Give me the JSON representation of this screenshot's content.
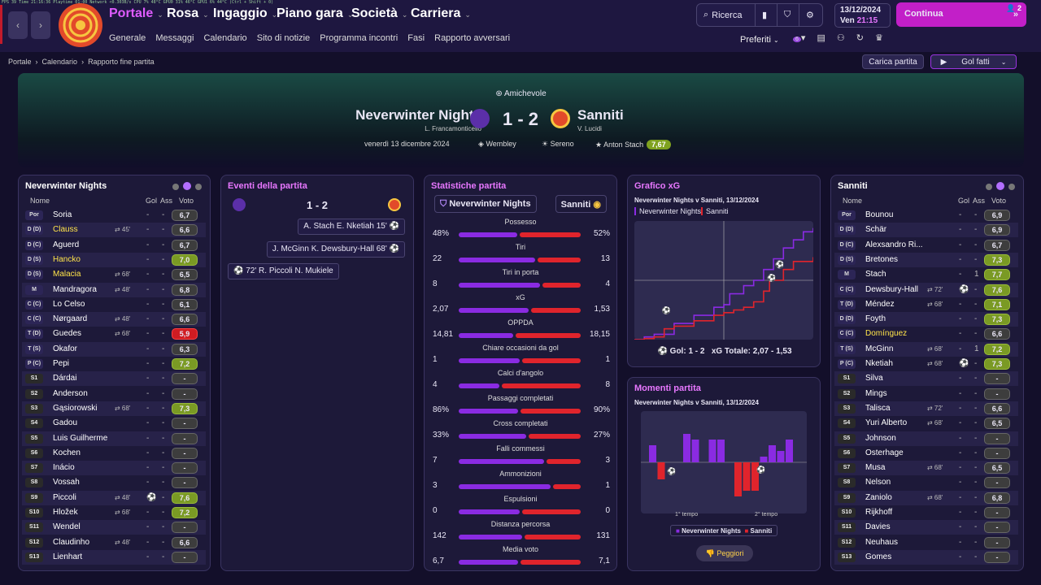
{
  "debug": {
    "text": "FPS 39      Time 21:16:36   Playtime 01:00    Network <0.303B/s    CPU 7%   48°C     GPU0 31%  46°C    GPU1 6%   44°C    (Ctrl + Shift + 0)"
  },
  "nav": {
    "menus": [
      "Portale",
      "Rosa",
      "Ingaggio",
      "Piano gara",
      "Società",
      "Carriera"
    ],
    "submenu": [
      "Generale",
      "Messaggi",
      "Calendario",
      "Sito di notizie",
      "Programma incontri",
      "Fasi",
      "Rapporto avversari"
    ],
    "search": "Ricerca",
    "date": "13/12/2024",
    "day": "Ven",
    "time": "21:15",
    "continua": "Continua",
    "badge": "2",
    "preferiti": "Preferiti",
    "pref_badge": "6"
  },
  "breadcrumb": [
    "Portale",
    "Calendario",
    "Rapporto fine partita"
  ],
  "actions": {
    "carica": "Carica partita",
    "golfatti": "Gol fatti"
  },
  "match": {
    "type": "Amichevole",
    "home": "Neverwinter Nights",
    "home_manager": "L. Francamonticello",
    "away": "Sanniti",
    "away_manager": "V. Lucidi",
    "score": "1 - 2",
    "date": "venerdì 13 dicembre 2024",
    "stadium": "Wembley",
    "weather": "Sereno",
    "motm": "Anton Stach",
    "motm_rating": "7,67"
  },
  "colors": {
    "home": "#8a2be2",
    "away": "#e0242c",
    "accent": "#e05cff"
  },
  "lineup_headers": {
    "name": "Nome",
    "gol": "Gol",
    "ass": "Ass",
    "voto": "Voto"
  },
  "home_lineup": {
    "title": "Neverwinter Nights",
    "players": [
      {
        "pos": "Por",
        "name": "Soria",
        "sub": "",
        "g": "-",
        "a": "-",
        "v": "6,7",
        "c": ""
      },
      {
        "pos": "D (D)",
        "name": "Clauss",
        "sub": "⇄ 45'",
        "g": "-",
        "a": "-",
        "v": "6,6",
        "c": "",
        "y": 1
      },
      {
        "pos": "D (C)",
        "name": "Aguerd",
        "sub": "",
        "g": "-",
        "a": "-",
        "v": "6,7",
        "c": ""
      },
      {
        "pos": "D (S)",
        "name": "Hancko",
        "sub": "",
        "g": "-",
        "a": "-",
        "v": "7,0",
        "c": "g",
        "y": 1
      },
      {
        "pos": "D (S)",
        "name": "Malacia",
        "sub": "⇄ 68'",
        "g": "-",
        "a": "-",
        "v": "6,5",
        "c": "",
        "y": 1
      },
      {
        "pos": "M",
        "name": "Mandragora",
        "sub": "⇄ 48'",
        "g": "-",
        "a": "-",
        "v": "6,8",
        "c": ""
      },
      {
        "pos": "C (C)",
        "name": "Lo Celso",
        "sub": "",
        "g": "-",
        "a": "-",
        "v": "6,1",
        "c": ""
      },
      {
        "pos": "C (C)",
        "name": "Nørgaard",
        "sub": "⇄ 48'",
        "g": "-",
        "a": "-",
        "v": "6,6",
        "c": ""
      },
      {
        "pos": "T (D)",
        "name": "Guedes",
        "sub": "⇄ 68'",
        "g": "-",
        "a": "-",
        "v": "5,9",
        "c": "r"
      },
      {
        "pos": "T (S)",
        "name": "Okafor",
        "sub": "",
        "g": "-",
        "a": "-",
        "v": "6,3",
        "c": ""
      },
      {
        "pos": "P (C)",
        "name": "Pepi",
        "sub": "",
        "g": "-",
        "a": "-",
        "v": "7,2",
        "c": "g"
      },
      {
        "pos": "S1",
        "name": "Dárdai",
        "sub": "",
        "g": "-",
        "a": "-",
        "v": "-",
        "c": "",
        "s": 1
      },
      {
        "pos": "S2",
        "name": "Anderson",
        "sub": "",
        "g": "-",
        "a": "-",
        "v": "-",
        "c": "",
        "s": 1
      },
      {
        "pos": "S3",
        "name": "Gąsiorowski",
        "sub": "⇄ 68'",
        "g": "-",
        "a": "-",
        "v": "7,3",
        "c": "g",
        "s": 1
      },
      {
        "pos": "S4",
        "name": "Gadou",
        "sub": "",
        "g": "-",
        "a": "-",
        "v": "-",
        "c": "",
        "s": 1
      },
      {
        "pos": "S5",
        "name": "Luis Guilherme",
        "sub": "",
        "g": "-",
        "a": "-",
        "v": "-",
        "c": "",
        "s": 1
      },
      {
        "pos": "S6",
        "name": "Kochen",
        "sub": "",
        "g": "-",
        "a": "-",
        "v": "-",
        "c": "",
        "s": 1
      },
      {
        "pos": "S7",
        "name": "Inácio",
        "sub": "",
        "g": "-",
        "a": "-",
        "v": "-",
        "c": "",
        "s": 1
      },
      {
        "pos": "S8",
        "name": "Vossah",
        "sub": "",
        "g": "-",
        "a": "-",
        "v": "-",
        "c": "",
        "s": 1
      },
      {
        "pos": "S9",
        "name": "Piccoli",
        "sub": "⇄ 48'",
        "g": "⚽",
        "a": "-",
        "v": "7,6",
        "c": "g",
        "s": 1
      },
      {
        "pos": "S10",
        "name": "Hložek",
        "sub": "⇄ 68'",
        "g": "-",
        "a": "-",
        "v": "7,2",
        "c": "g",
        "s": 1
      },
      {
        "pos": "S11",
        "name": "Wendel",
        "sub": "",
        "g": "-",
        "a": "-",
        "v": "-",
        "c": "",
        "s": 1
      },
      {
        "pos": "S12",
        "name": "Claudinho",
        "sub": "⇄ 48'",
        "g": "-",
        "a": "-",
        "v": "6,6",
        "c": "",
        "s": 1
      },
      {
        "pos": "S13",
        "name": "Lienhart",
        "sub": "",
        "g": "-",
        "a": "-",
        "v": "-",
        "c": "",
        "s": 1
      }
    ]
  },
  "away_lineup": {
    "title": "Sanniti",
    "players": [
      {
        "pos": "Por",
        "name": "Bounou",
        "sub": "",
        "g": "-",
        "a": "-",
        "v": "6,9",
        "c": ""
      },
      {
        "pos": "D (D)",
        "name": "Schär",
        "sub": "",
        "g": "-",
        "a": "-",
        "v": "6,9",
        "c": ""
      },
      {
        "pos": "D (C)",
        "name": "Alexsandro Ri...",
        "sub": "",
        "g": "-",
        "a": "-",
        "v": "6,7",
        "c": ""
      },
      {
        "pos": "D (S)",
        "name": "Bretones",
        "sub": "",
        "g": "-",
        "a": "-",
        "v": "7,3",
        "c": "g"
      },
      {
        "pos": "M",
        "name": "Stach",
        "sub": "",
        "g": "-",
        "a": "1",
        "v": "7,7",
        "c": "g"
      },
      {
        "pos": "C (C)",
        "name": "Dewsbury-Hall",
        "sub": "⇄ 72'",
        "g": "⚽",
        "a": "-",
        "v": "7,6",
        "c": "g"
      },
      {
        "pos": "T (D)",
        "name": "Méndez",
        "sub": "⇄ 68'",
        "g": "-",
        "a": "-",
        "v": "7,1",
        "c": "g"
      },
      {
        "pos": "D (D)",
        "name": "Foyth",
        "sub": "",
        "g": "-",
        "a": "-",
        "v": "7,3",
        "c": "g"
      },
      {
        "pos": "C (C)",
        "name": "Domínguez",
        "sub": "",
        "g": "-",
        "a": "-",
        "v": "6,6",
        "c": "",
        "y": 1
      },
      {
        "pos": "T (S)",
        "name": "McGinn",
        "sub": "⇄ 68'",
        "g": "-",
        "a": "1",
        "v": "7,2",
        "c": "g"
      },
      {
        "pos": "P (C)",
        "name": "Nketiah",
        "sub": "⇄ 68'",
        "g": "⚽",
        "a": "-",
        "v": "7,3",
        "c": "g"
      },
      {
        "pos": "S1",
        "name": "Silva",
        "sub": "",
        "g": "-",
        "a": "-",
        "v": "-",
        "c": "",
        "s": 1
      },
      {
        "pos": "S2",
        "name": "Mings",
        "sub": "",
        "g": "-",
        "a": "-",
        "v": "-",
        "c": "",
        "s": 1
      },
      {
        "pos": "S3",
        "name": "Talisca",
        "sub": "⇄ 72'",
        "g": "-",
        "a": "-",
        "v": "6,6",
        "c": "",
        "s": 1
      },
      {
        "pos": "S4",
        "name": "Yuri Alberto",
        "sub": "⇄ 68'",
        "g": "-",
        "a": "-",
        "v": "6,5",
        "c": "",
        "s": 1
      },
      {
        "pos": "S5",
        "name": "Johnson",
        "sub": "",
        "g": "-",
        "a": "-",
        "v": "-",
        "c": "",
        "s": 1
      },
      {
        "pos": "S6",
        "name": "Osterhage",
        "sub": "",
        "g": "-",
        "a": "-",
        "v": "-",
        "c": "",
        "s": 1
      },
      {
        "pos": "S7",
        "name": "Musa",
        "sub": "⇄ 68'",
        "g": "-",
        "a": "-",
        "v": "6,5",
        "c": "",
        "s": 1
      },
      {
        "pos": "S8",
        "name": "Nelson",
        "sub": "",
        "g": "-",
        "a": "-",
        "v": "-",
        "c": "",
        "s": 1
      },
      {
        "pos": "S9",
        "name": "Zaniolo",
        "sub": "⇄ 68'",
        "g": "-",
        "a": "-",
        "v": "6,8",
        "c": "",
        "s": 1
      },
      {
        "pos": "S10",
        "name": "Rijkhoff",
        "sub": "",
        "g": "-",
        "a": "-",
        "v": "-",
        "c": "",
        "s": 1
      },
      {
        "pos": "S11",
        "name": "Davies",
        "sub": "",
        "g": "-",
        "a": "-",
        "v": "-",
        "c": "",
        "s": 1
      },
      {
        "pos": "S12",
        "name": "Neuhaus",
        "sub": "",
        "g": "-",
        "a": "-",
        "v": "-",
        "c": "",
        "s": 1
      },
      {
        "pos": "S13",
        "name": "Gomes",
        "sub": "",
        "g": "-",
        "a": "-",
        "v": "-",
        "c": "",
        "s": 1
      }
    ]
  },
  "events": {
    "title": "Eventi della partita",
    "score": "1 - 2",
    "items": [
      {
        "text": "A. Stach  E. Nketiah  15'",
        "side": "away"
      },
      {
        "text": "J. McGinn  K. Dewsbury-Hall  68'",
        "side": "away"
      },
      {
        "text": "72'  R. Piccoli  N. Mukiele",
        "side": "home"
      }
    ]
  },
  "stats": {
    "title": "Statistiche partita",
    "home": "Neverwinter Nights",
    "away": "Sanniti",
    "rows": [
      {
        "label": "Possesso",
        "h": "48%",
        "a": "52%",
        "hv": 48,
        "av": 52
      },
      {
        "label": "Tiri",
        "h": "22",
        "a": "13",
        "hv": 22,
        "av": 13
      },
      {
        "label": "Tiri in porta",
        "h": "8",
        "a": "4",
        "hv": 8,
        "av": 4
      },
      {
        "label": "xG",
        "h": "2,07",
        "a": "1,53",
        "hv": 2.07,
        "av": 1.53
      },
      {
        "label": "OPPDA",
        "h": "14,81",
        "a": "18,15",
        "hv": 14.81,
        "av": 18.15
      },
      {
        "label": "Chiare occasioni da gol",
        "h": "1",
        "a": "1",
        "hv": 1,
        "av": 1
      },
      {
        "label": "Calci d'angolo",
        "h": "4",
        "a": "8",
        "hv": 4,
        "av": 8
      },
      {
        "label": "Passaggi completati",
        "h": "86%",
        "a": "90%",
        "hv": 86,
        "av": 90
      },
      {
        "label": "Cross completati",
        "h": "33%",
        "a": "27%",
        "hv": 33,
        "av": 27
      },
      {
        "label": "Falli commessi",
        "h": "7",
        "a": "3",
        "hv": 7,
        "av": 3
      },
      {
        "label": "Ammonizioni",
        "h": "3",
        "a": "1",
        "hv": 3,
        "av": 1
      },
      {
        "label": "Espulsioni",
        "h": "0",
        "a": "0",
        "hv": 0,
        "av": 0
      },
      {
        "label": "Distanza percorsa",
        "h": "142",
        "a": "131",
        "hv": 142,
        "av": 131
      },
      {
        "label": "Media voto",
        "h": "6,7",
        "a": "7,1",
        "hv": 6.7,
        "av": 7.1
      }
    ]
  },
  "xg": {
    "title": "Grafico xG",
    "subtitle": "Neverwinter Nights v Sanniti, 13/12/2024",
    "legend_home": "Neverwinter Nights",
    "legend_away": "Sanniti",
    "footer_goals": "Gol: 1 - 2",
    "footer_xg": "xG Totale: 2,07 - 1,53"
  },
  "momenti": {
    "title": "Momenti partita",
    "subtitle": "Neverwinter Nights v Sanniti, 13/12/2024",
    "label1": "1° tempo",
    "label2": "2° tempo",
    "legend_home": "Neverwinter Nights",
    "legend_away": "Sanniti",
    "button": "Peggiori"
  },
  "chart_data": [
    {
      "type": "line",
      "title": "Grafico xG",
      "series": [
        {
          "name": "Neverwinter Nights",
          "x": [
            0,
            5,
            10,
            20,
            30,
            40,
            45,
            48,
            55,
            60,
            65,
            70,
            75,
            80,
            85,
            90
          ],
          "y": [
            0,
            0.05,
            0.1,
            0.3,
            0.45,
            0.6,
            0.65,
            0.85,
            1.0,
            1.1,
            1.3,
            1.5,
            1.7,
            1.85,
            2.0,
            2.07
          ]
        },
        {
          "name": "Sanniti",
          "x": [
            0,
            5,
            10,
            15,
            20,
            30,
            40,
            45,
            50,
            55,
            60,
            65,
            68,
            75,
            80,
            90
          ],
          "y": [
            0,
            0.02,
            0.05,
            0.2,
            0.25,
            0.35,
            0.45,
            0.5,
            0.55,
            0.6,
            0.7,
            0.9,
            1.1,
            1.3,
            1.45,
            1.53
          ]
        }
      ],
      "goals": [
        15,
        68,
        72
      ]
    },
    {
      "type": "bar",
      "title": "Momenti partita",
      "series": [
        {
          "name": "Neverwinter Nights",
          "values": [
            3,
            0,
            0,
            0,
            5,
            4,
            0,
            4,
            4,
            0,
            0,
            0,
            0,
            1,
            3,
            2,
            4,
            0
          ]
        },
        {
          "name": "Sanniti",
          "values": [
            0,
            -3,
            0,
            0,
            0,
            0,
            0,
            0,
            0,
            0,
            -6,
            -5,
            -5,
            0,
            0,
            0,
            0,
            0
          ]
        }
      ],
      "xlabels": [
        "1° tempo",
        "2° tempo"
      ]
    }
  ]
}
